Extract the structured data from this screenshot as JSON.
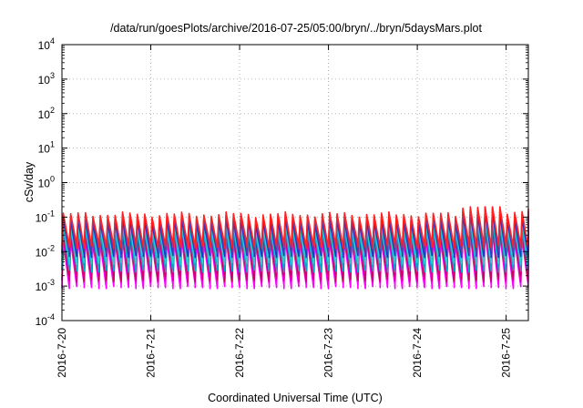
{
  "chart_data": {
    "type": "line",
    "title": "/data/run/goesPlots/archive/2016-07-25/05:00/bryn/../bryn/5daysMars.plot",
    "xlabel": "Coordinated Universal Time (UTC)",
    "ylabel": "cSv/day",
    "yscale": "log",
    "ylim": [
      0.0001,
      10000
    ],
    "xlim": [
      0,
      5.25
    ],
    "x_unit": "days since 2016-7-20",
    "y_ticks": [
      {
        "value": 0.0001,
        "base": "10",
        "exp": "-4"
      },
      {
        "value": 0.001,
        "base": "10",
        "exp": "-3"
      },
      {
        "value": 0.01,
        "base": "10",
        "exp": "-2"
      },
      {
        "value": 0.1,
        "base": "10",
        "exp": "-1"
      },
      {
        "value": 1,
        "base": "10",
        "exp": "0"
      },
      {
        "value": 10,
        "base": "10",
        "exp": "1"
      },
      {
        "value": 100,
        "base": "10",
        "exp": "2"
      },
      {
        "value": 1000,
        "base": "10",
        "exp": "3"
      },
      {
        "value": 10000,
        "base": "10",
        "exp": "4"
      }
    ],
    "x_ticks": [
      {
        "value": 0,
        "label": "2016-7-20"
      },
      {
        "value": 1,
        "label": "2016-7-21"
      },
      {
        "value": 2,
        "label": "2016-7-22"
      },
      {
        "value": 3,
        "label": "2016-7-23"
      },
      {
        "value": 4,
        "label": "2016-7-24"
      },
      {
        "value": 5,
        "label": "2016-7-25"
      }
    ],
    "grid": true,
    "legend": "none",
    "cycle_days": 0.0833,
    "series": [
      {
        "color": "#ff00ff",
        "peak": 0.02,
        "trough": 0.001
      },
      {
        "color": "#cc0066",
        "peak": 0.028,
        "trough": 0.0016
      },
      {
        "color": "#00aacc",
        "peak": 0.04,
        "trough": 0.003
      },
      {
        "color": "#33cccc",
        "peak": 0.055,
        "trough": 0.005
      },
      {
        "color": "#2233cc",
        "peak": 0.075,
        "trough": 0.008
      },
      {
        "color": "#6633aa",
        "peak": 0.1,
        "trough": 0.011
      },
      {
        "color": "#ff2222",
        "peak": 0.12,
        "trough": 0.015
      }
    ]
  }
}
